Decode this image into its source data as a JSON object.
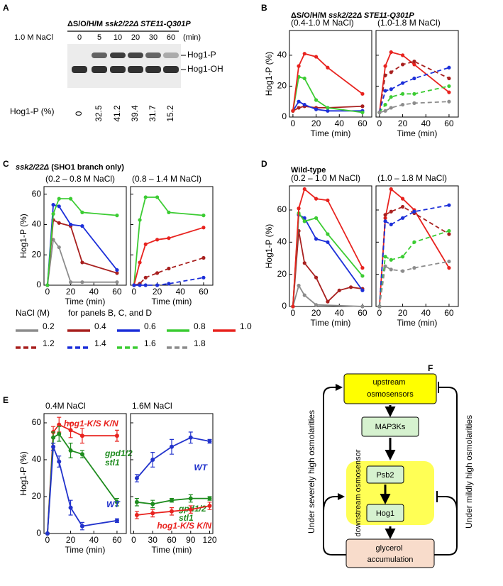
{
  "panel_letters": [
    "A",
    "B",
    "C",
    "D",
    "E",
    "F"
  ],
  "panel_titles": {
    "B": [
      "ΔS/O/H/M ",
      "ssk2/22Δ",
      " STE11-Q301P"
    ],
    "C": [
      "ssk2/22Δ",
      " (SHO1 branch only)"
    ],
    "D": "Wild-type"
  },
  "gel": {
    "genotype": [
      "ΔS/O/H/M ",
      "ssk2/22Δ",
      " STE11-Q301P"
    ],
    "treatment": "1.0 M NaCl",
    "lanes": [
      0,
      5,
      10,
      20,
      30,
      60
    ],
    "lane_unit": "(min)",
    "bands": [
      "Hog1-P",
      "Hog1-OH"
    ],
    "quant_label": "Hog1-P (%)",
    "values": [
      0,
      32.5,
      41.2,
      39.4,
      31.7,
      15.2
    ]
  },
  "legend": {
    "title": "NaCl (M)",
    "note": "for panels B, C, and D",
    "entries": [
      {
        "label": "0.2",
        "color": "#8c8c8c",
        "dashed": false
      },
      {
        "label": "0.4",
        "color": "#a8201f",
        "dashed": false
      },
      {
        "label": "0.6",
        "color": "#1c2fd9",
        "dashed": false
      },
      {
        "label": "0.8",
        "color": "#3ccc33",
        "dashed": false
      },
      {
        "label": "1.0",
        "color": "#e8231f",
        "dashed": false
      },
      {
        "label": "1.2",
        "color": "#a8201f",
        "dashed": true
      },
      {
        "label": "1.4",
        "color": "#1c2fd9",
        "dashed": true
      },
      {
        "label": "1.6",
        "color": "#3ccc33",
        "dashed": true
      },
      {
        "label": "1.8",
        "color": "#8c8c8c",
        "dashed": true
      }
    ]
  },
  "chart_data": [
    {
      "type": "line",
      "subtitle": "(0.4-1.0 M NaCl)",
      "xlabel": "Time (min)",
      "ylabel": "Hog1-P (%)",
      "xlim": [
        -3,
        68
      ],
      "xticks": [
        0,
        20,
        40,
        60
      ],
      "ylim": [
        0,
        56
      ],
      "yticks": [
        0,
        20,
        40
      ],
      "show_ytick_labels": true,
      "series": [
        {
          "color": "#a8201f",
          "dashed": false,
          "x": [
            0,
            5,
            10,
            20,
            30,
            60
          ],
          "values": [
            4,
            6,
            7,
            6,
            6,
            7
          ]
        },
        {
          "color": "#1c2fd9",
          "dashed": false,
          "x": [
            0,
            5,
            10,
            20,
            30,
            60
          ],
          "values": [
            4,
            10,
            8,
            5,
            4,
            4
          ]
        },
        {
          "color": "#3ccc33",
          "dashed": false,
          "x": [
            0,
            5,
            10,
            20,
            30,
            60
          ],
          "values": [
            4,
            26,
            25,
            11,
            6,
            3
          ]
        },
        {
          "color": "#e8231f",
          "dashed": false,
          "x": [
            0,
            5,
            10,
            20,
            30,
            60
          ],
          "values": [
            4,
            33,
            41,
            39,
            32,
            15
          ]
        }
      ]
    },
    {
      "type": "line",
      "subtitle": "(1.0-1.8 M NaCl)",
      "xlabel": "Time (min)",
      "xlim": [
        -3,
        68
      ],
      "xticks": [
        0,
        20,
        40,
        60
      ],
      "ylim": [
        0,
        56
      ],
      "yticks": [
        0,
        20,
        40
      ],
      "show_ytick_labels": false,
      "series": [
        {
          "color": "#e8231f",
          "dashed": false,
          "x": [
            0,
            5,
            10,
            20,
            30,
            60
          ],
          "values": [
            3,
            33,
            42,
            40,
            34,
            16
          ]
        },
        {
          "color": "#a8201f",
          "dashed": true,
          "x": [
            0,
            5,
            10,
            20,
            30,
            60
          ],
          "values": [
            3,
            27,
            29,
            34,
            36,
            25
          ]
        },
        {
          "color": "#1c2fd9",
          "dashed": true,
          "x": [
            0,
            5,
            10,
            20,
            30,
            60
          ],
          "values": [
            3,
            17,
            18,
            22,
            25,
            32
          ]
        },
        {
          "color": "#3ccc33",
          "dashed": true,
          "x": [
            0,
            5,
            10,
            20,
            30,
            60
          ],
          "values": [
            3,
            8,
            13,
            15,
            15,
            20
          ]
        },
        {
          "color": "#8c8c8c",
          "dashed": true,
          "x": [
            0,
            5,
            10,
            20,
            30,
            60
          ],
          "values": [
            3,
            4,
            6,
            8,
            9,
            10
          ]
        }
      ]
    },
    {
      "type": "line",
      "subtitle": "(0.2 – 0.8 M NaCl)",
      "xlabel": "Time (min)",
      "ylabel": "Hog1-P (%)",
      "xlim": [
        -3,
        68
      ],
      "xticks": [
        0,
        20,
        40,
        60
      ],
      "ylim": [
        0,
        65
      ],
      "yticks": [
        0,
        20,
        40,
        60
      ],
      "show_ytick_labels": true,
      "series": [
        {
          "color": "#8c8c8c",
          "dashed": false,
          "x": [
            0,
            5,
            10,
            20,
            30,
            60
          ],
          "values": [
            0,
            30,
            25,
            2,
            2,
            2
          ]
        },
        {
          "color": "#a8201f",
          "dashed": false,
          "x": [
            0,
            5,
            10,
            20,
            30,
            60
          ],
          "values": [
            0,
            43,
            41,
            39,
            15,
            8
          ]
        },
        {
          "color": "#1c2fd9",
          "dashed": false,
          "x": [
            0,
            5,
            10,
            20,
            30,
            60
          ],
          "values": [
            0,
            53,
            52,
            40,
            39,
            10
          ]
        },
        {
          "color": "#3ccc33",
          "dashed": false,
          "x": [
            0,
            5,
            10,
            20,
            30,
            60
          ],
          "values": [
            0,
            47,
            57,
            57,
            48,
            46
          ]
        }
      ]
    },
    {
      "type": "line",
      "subtitle": "(0.8 – 1.4 M NaCl)",
      "xlabel": "Time (min)",
      "xlim": [
        -3,
        68
      ],
      "xticks": [
        0,
        20,
        40,
        60
      ],
      "ylim": [
        0,
        65
      ],
      "yticks": [
        0,
        20,
        40,
        60
      ],
      "show_ytick_labels": false,
      "series": [
        {
          "color": "#3ccc33",
          "dashed": false,
          "x": [
            0,
            5,
            10,
            20,
            30,
            60
          ],
          "values": [
            0,
            43,
            58,
            58,
            48,
            46
          ]
        },
        {
          "color": "#e8231f",
          "dashed": false,
          "x": [
            0,
            5,
            10,
            20,
            30,
            60
          ],
          "values": [
            0,
            15,
            27,
            30,
            31,
            38
          ]
        },
        {
          "color": "#a8201f",
          "dashed": true,
          "x": [
            0,
            5,
            10,
            20,
            30,
            60
          ],
          "values": [
            0,
            1,
            5,
            8,
            11,
            18
          ]
        },
        {
          "color": "#1c2fd9",
          "dashed": true,
          "x": [
            0,
            5,
            10,
            20,
            30,
            60
          ],
          "values": [
            0,
            0,
            0,
            0,
            1,
            5
          ]
        }
      ]
    },
    {
      "type": "line",
      "subtitle": "(0.2 – 1.0 M NaCl)",
      "xlabel": "Time (min)",
      "ylabel": "Hog1-P (%)",
      "xlim": [
        -3,
        68
      ],
      "xticks": [
        0,
        20,
        40,
        60
      ],
      "ylim": [
        0,
        75
      ],
      "yticks": [
        0,
        20,
        40,
        60
      ],
      "show_ytick_labels": true,
      "series": [
        {
          "color": "#8c8c8c",
          "dashed": false,
          "x": [
            0,
            5,
            10,
            20,
            60
          ],
          "values": [
            0,
            13,
            7,
            1,
            0
          ]
        },
        {
          "color": "#a8201f",
          "dashed": false,
          "x": [
            0,
            5,
            10,
            20,
            30,
            40,
            50,
            60
          ],
          "values": [
            0,
            47,
            27,
            18,
            3,
            10,
            12,
            11
          ]
        },
        {
          "color": "#1c2fd9",
          "dashed": false,
          "x": [
            0,
            5,
            10,
            20,
            30,
            60
          ],
          "values": [
            0,
            57,
            55,
            42,
            40,
            10
          ]
        },
        {
          "color": "#3ccc33",
          "dashed": false,
          "x": [
            0,
            5,
            10,
            20,
            30,
            60
          ],
          "values": [
            0,
            58,
            53,
            55,
            45,
            19
          ]
        },
        {
          "color": "#e8231f",
          "dashed": false,
          "x": [
            0,
            5,
            10,
            20,
            30,
            60
          ],
          "values": [
            0,
            61,
            73,
            67,
            66,
            24
          ]
        }
      ]
    },
    {
      "type": "line",
      "subtitle": "(1.0 – 1.8 M NaCl)",
      "xlabel": "Time (min)",
      "xlim": [
        -3,
        68
      ],
      "xticks": [
        0,
        20,
        40,
        60
      ],
      "ylim": [
        0,
        75
      ],
      "yticks": [
        0,
        20,
        40,
        60
      ],
      "show_ytick_labels": false,
      "series": [
        {
          "color": "#e8231f",
          "dashed": false,
          "x": [
            0,
            5,
            10,
            20,
            30,
            60
          ],
          "values": [
            0,
            55,
            73,
            67,
            60,
            24
          ]
        },
        {
          "color": "#a8201f",
          "dashed": true,
          "x": [
            0,
            5,
            10,
            20,
            30,
            60
          ],
          "values": [
            0,
            57,
            59,
            62,
            58,
            45
          ]
        },
        {
          "color": "#1c2fd9",
          "dashed": true,
          "x": [
            0,
            5,
            10,
            20,
            30,
            60
          ],
          "values": [
            0,
            53,
            51,
            55,
            59,
            63
          ]
        },
        {
          "color": "#3ccc33",
          "dashed": true,
          "x": [
            0,
            5,
            10,
            20,
            30,
            60
          ],
          "values": [
            0,
            31,
            29,
            31,
            40,
            47
          ]
        },
        {
          "color": "#8c8c8c",
          "dashed": true,
          "x": [
            0,
            5,
            10,
            20,
            30,
            60
          ],
          "values": [
            0,
            25,
            23,
            22,
            24,
            28
          ]
        }
      ]
    },
    {
      "type": "line",
      "subtitle": "0.4M NaCl",
      "xlabel": "Time (min)",
      "ylabel": "Hog1-P (%)",
      "xlim": [
        -3,
        68
      ],
      "xticks": [
        0,
        20,
        40,
        60
      ],
      "ylim": [
        0,
        65
      ],
      "yticks": [
        0,
        20,
        40,
        60
      ],
      "show_ytick_labels": true,
      "series": [
        {
          "name": "hog1-K/S K/N",
          "color": "#e8231f",
          "dashed": false,
          "x": [
            0,
            5,
            10,
            20,
            30,
            60
          ],
          "values": [
            0,
            55,
            59,
            56,
            53,
            53
          ],
          "errors": [
            0,
            3,
            4,
            4,
            4,
            3
          ]
        },
        {
          "name": "gpd1/2 stl1",
          "color": "#1f8c1f",
          "dashed": false,
          "x": [
            0,
            5,
            10,
            20,
            30,
            60
          ],
          "values": [
            0,
            52,
            54,
            45,
            43,
            17
          ],
          "errors": [
            0,
            3,
            4,
            4,
            2,
            2
          ]
        },
        {
          "name": "WT",
          "color": "#2233cc",
          "dashed": false,
          "x": [
            0,
            5,
            10,
            20,
            30,
            60
          ],
          "values": [
            0,
            47,
            39,
            14,
            4,
            7
          ],
          "errors": [
            0,
            2,
            3,
            4,
            2,
            1
          ]
        }
      ]
    },
    {
      "type": "line",
      "subtitle": "1.6M NaCl",
      "xlabel": "Time (min)",
      "xlim": [
        -5,
        125
      ],
      "xticks": [
        0,
        30,
        60,
        90,
        120
      ],
      "ylim": [
        0,
        65
      ],
      "yticks": [
        0,
        20,
        40,
        60
      ],
      "show_ytick_labels": false,
      "series": [
        {
          "name": "WT",
          "color": "#2233cc",
          "dashed": false,
          "x": [
            5,
            30,
            60,
            90,
            120
          ],
          "values": [
            30,
            40,
            47,
            52,
            50
          ],
          "errors": [
            2,
            4,
            4,
            3,
            1
          ]
        },
        {
          "name": "gpd1/2 stl1",
          "color": "#1f8c1f",
          "dashed": false,
          "x": [
            5,
            30,
            60,
            90,
            120
          ],
          "values": [
            17,
            16,
            18,
            19,
            19
          ],
          "errors": [
            2,
            2,
            1,
            2,
            1
          ]
        },
        {
          "name": "hog1-K/S K/N",
          "color": "#e8231f",
          "dashed": false,
          "x": [
            5,
            30,
            60,
            90,
            120
          ],
          "values": [
            10,
            11,
            12,
            13,
            15
          ],
          "errors": [
            2,
            2,
            2,
            2,
            2
          ]
        }
      ]
    }
  ],
  "diagram": {
    "nodes": [
      "upstream osmosensors",
      "MAP3Ks",
      "downstream osmosensor",
      "Psb2",
      "Hog1",
      "glycerol accumulation"
    ],
    "left_label": "Under severely high osmolarities",
    "right_label": "Under mildly high osmolarities"
  }
}
